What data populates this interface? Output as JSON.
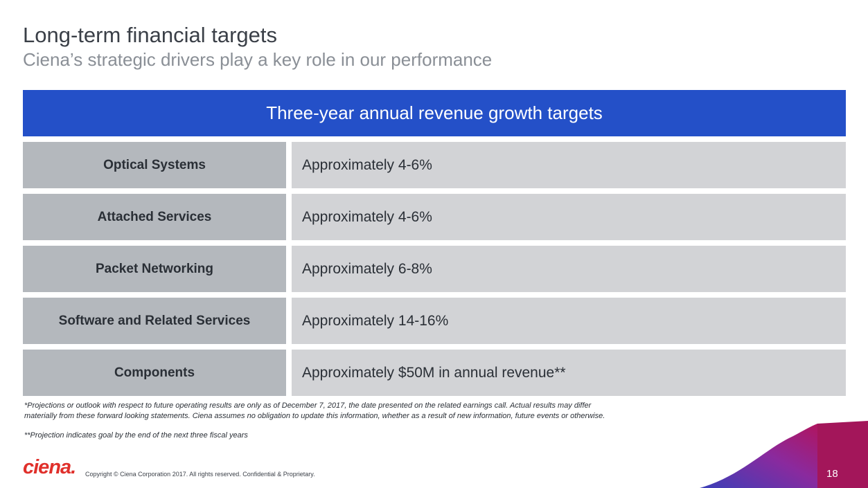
{
  "header": {
    "title": "Long-term financial targets",
    "subtitle": "Ciena’s strategic drivers play a key role in our performance"
  },
  "table": {
    "heading": "Three-year annual revenue growth targets",
    "rows": [
      {
        "label": "Optical Systems",
        "value": "Approximately 4-6%"
      },
      {
        "label": "Attached Services",
        "value": "Approximately 4-6%"
      },
      {
        "label": "Packet Networking",
        "value": "Approximately 6-8%"
      },
      {
        "label": "Software and Related Services",
        "value": "Approximately 14-16%"
      },
      {
        "label": "Components",
        "value": "Approximately $50M in annual revenue**"
      }
    ]
  },
  "footnotes": {
    "disclaimer_line1": "*Projections or outlook with respect to future operating results are only as of December 7, 2017, the date presented on the related earnings call. Actual results may differ",
    "disclaimer_line2": "materially from these forward looking statements. Ciena assumes no obligation to update this information, whether as a result of new information, future events or otherwise.",
    "projection_note": "**Projection indicates goal by the end of the next three fiscal years"
  },
  "footer": {
    "logo_text": "ciena.",
    "copyright": "Copyright © Ciena Corporation 2017. All rights reserved. Confidential & Proprietary.",
    "page_number": "18"
  },
  "colors": {
    "banner": "#2450c8",
    "label_cell": "#b4b8bd",
    "value_cell": "#d2d3d6",
    "brand_red": "#e0302b"
  }
}
